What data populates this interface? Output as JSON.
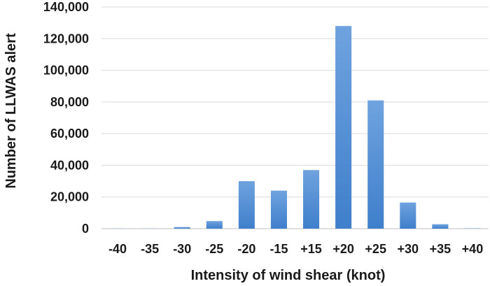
{
  "chart_data": {
    "type": "bar",
    "title": "",
    "xlabel": "Intensity of wind shear (knot)",
    "ylabel": "Number of LLWAS alert",
    "categories": [
      "-40",
      "-35",
      "-30",
      "-25",
      "-20",
      "-15",
      "+15",
      "+20",
      "+25",
      "+30",
      "+35",
      "+40"
    ],
    "values": [
      100,
      100,
      1000,
      4800,
      30000,
      24000,
      37000,
      128000,
      81000,
      16500,
      2800,
      200
    ],
    "ylim": [
      0,
      140000
    ],
    "yticks": [
      0,
      20000,
      40000,
      60000,
      80000,
      100000,
      120000,
      140000
    ],
    "ytick_labels": [
      "0",
      "20,000",
      "40,000",
      "60,000",
      "80,000",
      "100,000",
      "120,000",
      "140,000"
    ],
    "grid": true,
    "legend": "none",
    "colors": {
      "bar": "#6fa3df",
      "bar_dark": "#3f7fcb",
      "grid": "#d9d9d9"
    }
  }
}
